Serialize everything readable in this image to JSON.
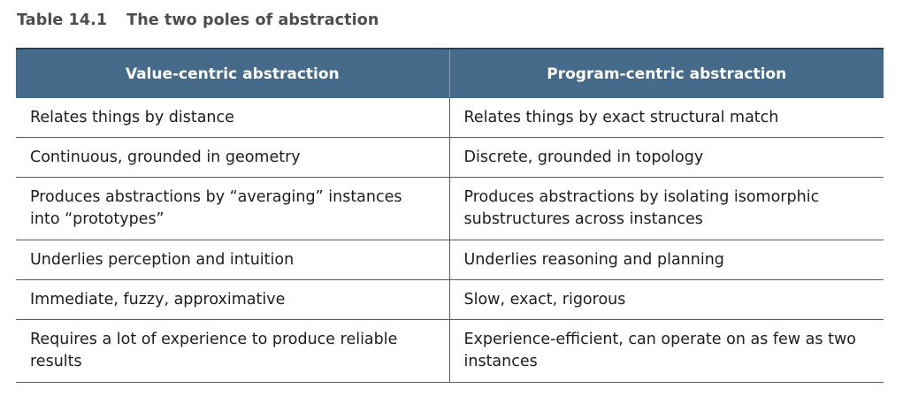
{
  "caption": {
    "number": "Table 14.1",
    "title": "The two poles of abstraction"
  },
  "table": {
    "headers": [
      "Value-centric abstraction",
      "Program-centric abstraction"
    ],
    "rows": [
      [
        "Relates things by distance",
        "Relates things by exact structural match"
      ],
      [
        "Continuous, grounded in geometry",
        "Discrete, grounded in topology"
      ],
      [
        "Produces abstractions by “averaging” instances into “prototypes”",
        "Produces abstractions by isolating isomorphic substructures across instances"
      ],
      [
        "Underlies perception and intuition",
        "Underlies reasoning and planning"
      ],
      [
        "Immediate, fuzzy, approximative",
        "Slow, exact, rigorous"
      ],
      [
        "Requires a lot of experience to produce reliable results",
        "Experience-efficient, can operate on as few as two instances"
      ]
    ]
  },
  "colors": {
    "header_bg": "#466a8a",
    "header_text": "#ffffff",
    "caption_text": "#4d4d4d",
    "rule": "#5c5c5c"
  }
}
